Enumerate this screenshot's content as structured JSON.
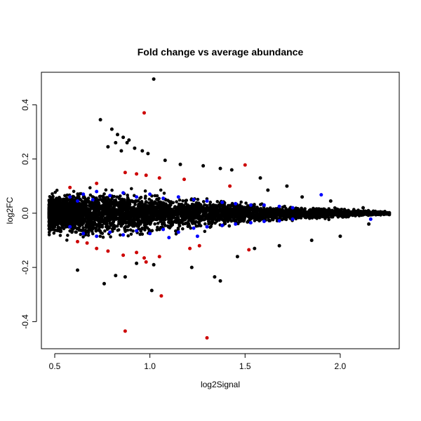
{
  "chart_data": {
    "type": "scatter",
    "title": "Fold change vs average abundance",
    "xlabel": "log2Signal",
    "ylabel": "log2FC",
    "xlim": [
      0.43,
      2.31
    ],
    "ylim": [
      -0.5,
      0.52
    ],
    "x_ticks": [
      0.5,
      1.0,
      1.5,
      2.0
    ],
    "x_tick_labels": [
      "0.5",
      "1.0",
      "1.5",
      "2.0"
    ],
    "y_ticks": [
      -0.4,
      -0.2,
      0.0,
      0.2,
      0.4
    ],
    "y_tick_labels": [
      "-0.4",
      "-0.2",
      "0.0",
      "0.2",
      "0.4"
    ],
    "grid": false,
    "legend": "none",
    "colors": {
      "all": "#000000",
      "blue_highlight": "#0000ff",
      "red_highlight": "#cd0000"
    },
    "dense_cloud": {
      "description_values": "main point mass (black) follows a funnel narrowing with increasing signal",
      "x": [
        0.47,
        0.55,
        0.65,
        0.75,
        0.85,
        0.95,
        1.05,
        1.2,
        1.35,
        1.5,
        1.65,
        1.8,
        1.95,
        2.1,
        2.26
      ],
      "half_width": [
        0.07,
        0.08,
        0.085,
        0.085,
        0.08,
        0.075,
        0.07,
        0.06,
        0.05,
        0.04,
        0.03,
        0.025,
        0.02,
        0.012,
        0.006
      ]
    },
    "series": [
      {
        "color": "#000000",
        "points": [
          [
            1.02,
            0.495
          ],
          [
            0.74,
            0.345
          ],
          [
            0.8,
            0.31
          ],
          [
            0.83,
            0.29
          ],
          [
            0.86,
            0.28
          ],
          [
            0.89,
            0.27
          ],
          [
            0.82,
            0.26
          ],
          [
            0.88,
            0.26
          ],
          [
            0.78,
            0.245
          ],
          [
            0.92,
            0.24
          ],
          [
            0.85,
            0.23
          ],
          [
            0.96,
            0.23
          ],
          [
            0.99,
            0.22
          ],
          [
            1.08,
            0.195
          ],
          [
            1.16,
            0.18
          ],
          [
            1.28,
            0.175
          ],
          [
            1.37,
            0.165
          ],
          [
            1.43,
            0.16
          ],
          [
            1.58,
            0.13
          ],
          [
            1.72,
            0.1
          ],
          [
            1.62,
            0.085
          ],
          [
            1.8,
            0.06
          ],
          [
            1.95,
            0.045
          ],
          [
            2.12,
            0.02
          ],
          [
            0.62,
            -0.21
          ],
          [
            0.76,
            -0.26
          ],
          [
            0.82,
            -0.23
          ],
          [
            0.87,
            -0.235
          ],
          [
            1.01,
            -0.285
          ],
          [
            1.34,
            -0.235
          ],
          [
            1.37,
            -0.25
          ],
          [
            1.22,
            -0.2
          ],
          [
            1.02,
            -0.19
          ],
          [
            0.93,
            -0.185
          ],
          [
            1.46,
            -0.16
          ],
          [
            1.55,
            -0.13
          ],
          [
            1.68,
            -0.12
          ],
          [
            1.85,
            -0.1
          ],
          [
            2.0,
            -0.085
          ],
          [
            2.15,
            -0.04
          ]
        ]
      },
      {
        "color": "#0000ff",
        "points": [
          [
            0.58,
            0.06
          ],
          [
            0.65,
            0.07
          ],
          [
            0.72,
            0.08
          ],
          [
            0.79,
            0.065
          ],
          [
            0.86,
            0.075
          ],
          [
            0.93,
            0.06
          ],
          [
            1.0,
            0.07
          ],
          [
            1.07,
            0.055
          ],
          [
            1.15,
            0.06
          ],
          [
            1.23,
            0.05
          ],
          [
            1.3,
            0.045
          ],
          [
            1.38,
            0.04
          ],
          [
            1.45,
            0.035
          ],
          [
            1.53,
            0.03
          ],
          [
            1.6,
            0.03
          ],
          [
            1.68,
            0.025
          ],
          [
            1.75,
            0.02
          ],
          [
            1.9,
            0.068
          ],
          [
            0.62,
            0.045
          ],
          [
            0.7,
            0.05
          ],
          [
            0.58,
            -0.05
          ],
          [
            0.65,
            -0.075
          ],
          [
            0.72,
            -0.085
          ],
          [
            0.79,
            -0.07
          ],
          [
            0.86,
            -0.08
          ],
          [
            0.93,
            -0.065
          ],
          [
            1.0,
            -0.075
          ],
          [
            1.07,
            -0.06
          ],
          [
            1.15,
            -0.07
          ],
          [
            1.23,
            -0.055
          ],
          [
            1.3,
            -0.05
          ],
          [
            1.38,
            -0.045
          ],
          [
            1.45,
            -0.04
          ],
          [
            1.53,
            -0.035
          ],
          [
            1.6,
            -0.03
          ],
          [
            1.68,
            -0.028
          ],
          [
            1.75,
            -0.022
          ],
          [
            2.16,
            -0.022
          ],
          [
            1.25,
            -0.085
          ],
          [
            1.1,
            -0.09
          ]
        ]
      },
      {
        "color": "#cd0000",
        "points": [
          [
            0.97,
            0.37
          ],
          [
            1.5,
            0.178
          ],
          [
            0.87,
            0.15
          ],
          [
            0.93,
            0.145
          ],
          [
            0.98,
            0.14
          ],
          [
            1.05,
            0.13
          ],
          [
            1.18,
            0.125
          ],
          [
            1.42,
            0.1
          ],
          [
            0.58,
            0.095
          ],
          [
            0.72,
            0.11
          ],
          [
            0.87,
            -0.435
          ],
          [
            1.3,
            -0.46
          ],
          [
            1.06,
            -0.305
          ],
          [
            0.98,
            -0.18
          ],
          [
            0.97,
            -0.165
          ],
          [
            0.93,
            -0.145
          ],
          [
            0.86,
            -0.155
          ],
          [
            0.78,
            -0.14
          ],
          [
            0.72,
            -0.13
          ],
          [
            0.67,
            -0.11
          ],
          [
            1.05,
            -0.16
          ],
          [
            1.21,
            -0.13
          ],
          [
            1.26,
            -0.12
          ],
          [
            1.52,
            -0.135
          ],
          [
            0.62,
            -0.105
          ]
        ]
      }
    ]
  }
}
